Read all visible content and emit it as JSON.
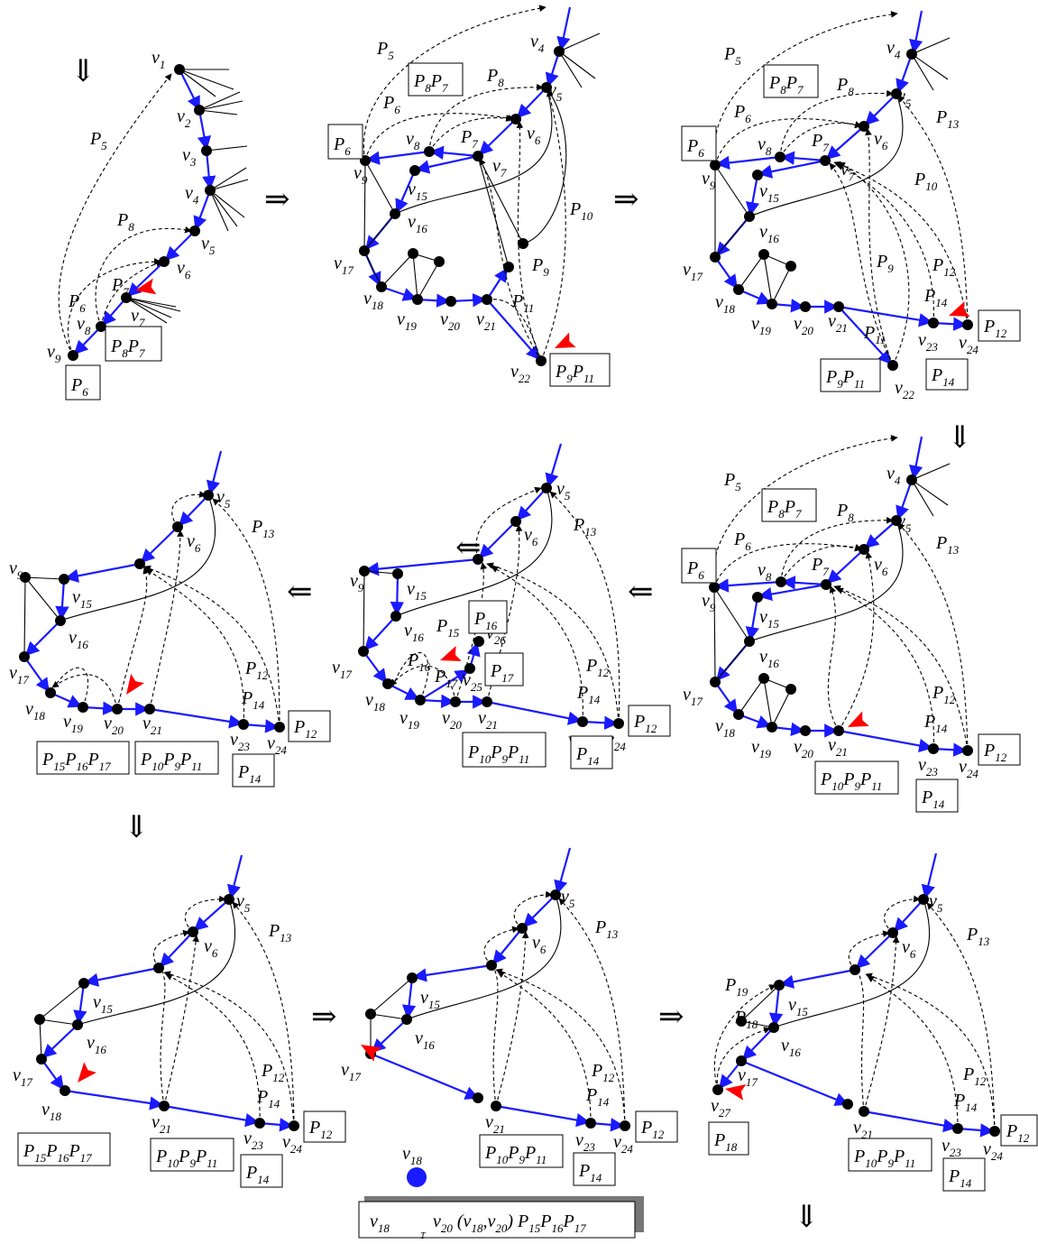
{
  "panels": [
    {
      "id": 1,
      "vertices": [
        "v1",
        "v2",
        "v3",
        "v4",
        "v5",
        "v6",
        "P7",
        "v7",
        "v8",
        "v9"
      ],
      "path_labels": [
        "P5",
        "P8",
        "P6"
      ],
      "boxes": [
        [
          "P",
          "8",
          "P",
          "7"
        ],
        [
          "P",
          "6"
        ]
      ]
    },
    {
      "id": 2,
      "vertices": [
        "v4",
        "v5",
        "v6",
        "v7",
        "v8",
        "v9",
        "v15",
        "v16",
        "v17",
        "v18",
        "v19",
        "v20",
        "v21",
        "v22"
      ],
      "path_labels": [
        "P5",
        "P8",
        "P6",
        "P7",
        "P10",
        "P9",
        "P11"
      ],
      "boxes": [
        [
          "P",
          "8",
          "P",
          "7"
        ],
        [
          "P",
          "6"
        ],
        [
          "P",
          "9",
          "P",
          "11"
        ]
      ]
    },
    {
      "id": 3,
      "vertices": [
        "v4",
        "v5",
        "v6",
        "v7",
        "v8",
        "v9",
        "v15",
        "v16",
        "v17",
        "v18",
        "v19",
        "v20",
        "v21",
        "v22",
        "v23",
        "v24"
      ],
      "path_labels": [
        "P5",
        "P8",
        "P6",
        "P7",
        "P13",
        "P10",
        "P9",
        "P12",
        "P14",
        "P11"
      ],
      "boxes": [
        [
          "P",
          "8",
          "P",
          "7"
        ],
        [
          "P",
          "6"
        ],
        [
          "P",
          "9",
          "P",
          "11"
        ],
        [
          "P",
          "14"
        ],
        [
          "P",
          "12"
        ]
      ]
    },
    {
      "id": 4,
      "vertices": [
        "v4",
        "v5",
        "v6",
        "v8",
        "v9",
        "v15",
        "v16",
        "v17",
        "v18",
        "v19",
        "v20",
        "v21",
        "v23",
        "v24"
      ],
      "path_labels": [
        "P5",
        "P8",
        "P6",
        "P7",
        "P13",
        "P12",
        "P14"
      ],
      "boxes": [
        [
          "P",
          "8",
          "P",
          "7"
        ],
        [
          "P",
          "6"
        ],
        [
          "P",
          "10",
          "P",
          "9",
          "P",
          "11"
        ],
        [
          "P",
          "14"
        ],
        [
          "P",
          "12"
        ]
      ]
    },
    {
      "id": 5,
      "vertices": [
        "v5",
        "v6",
        "v9",
        "v15",
        "v16",
        "v17",
        "v18",
        "v19",
        "v20",
        "v21",
        "v23",
        "v24",
        "v25",
        "v26"
      ],
      "path_labels": [
        "P13",
        "P15",
        "P16",
        "P17",
        "P12",
        "P14"
      ],
      "boxes": [
        [
          "P",
          "16"
        ],
        [
          "P",
          "17"
        ],
        [
          "P",
          "10",
          "P",
          "9",
          "P",
          "11"
        ],
        [
          "P",
          "14"
        ],
        [
          "P",
          "12"
        ]
      ]
    },
    {
      "id": 6,
      "vertices": [
        "v5",
        "v6",
        "v9",
        "v15",
        "v16",
        "v17",
        "v18",
        "v19",
        "v20",
        "v21",
        "v23",
        "v24"
      ],
      "path_labels": [
        "P13",
        "P12",
        "P14"
      ],
      "boxes": [
        [
          "P",
          "15",
          "P",
          "16",
          "P",
          "17"
        ],
        [
          "P",
          "10",
          "P",
          "9",
          "P",
          "11"
        ],
        [
          "P",
          "14"
        ],
        [
          "P",
          "12"
        ]
      ]
    },
    {
      "id": 7,
      "vertices": [
        "v5",
        "v6",
        "v15",
        "v16",
        "v17",
        "v18",
        "v21",
        "v23",
        "v24"
      ],
      "path_labels": [
        "P13",
        "P12",
        "P14"
      ],
      "boxes": [
        [
          "P",
          "15",
          "P",
          "16",
          "P",
          "17"
        ],
        [
          "P",
          "10",
          "P",
          "9",
          "P",
          "11"
        ],
        [
          "P",
          "14"
        ],
        [
          "P",
          "12"
        ]
      ]
    },
    {
      "id": 8,
      "vertices": [
        "v5",
        "v6",
        "v15",
        "v16",
        "v17",
        "v21",
        "v23",
        "v24",
        "v18"
      ],
      "path_labels": [
        "P13",
        "P12",
        "P14"
      ],
      "boxes": [
        [
          "P",
          "10",
          "P",
          "9",
          "P",
          "11"
        ],
        [
          "P",
          "14"
        ],
        [
          "P",
          "12"
        ]
      ],
      "shadow_box_text": [
        "v",
        "18",
        "T",
        "v",
        "20",
        "(v",
        "18",
        ",v",
        "20",
        ")",
        "P",
        "15",
        "P",
        "16",
        "P",
        "17"
      ]
    },
    {
      "id": 9,
      "vertices": [
        "v5",
        "v6",
        "v15",
        "v16",
        "v17",
        "v21",
        "v23",
        "v24",
        "v27"
      ],
      "path_labels": [
        "P13",
        "P19",
        "P18",
        "P12",
        "P14"
      ],
      "boxes": [
        [
          "P",
          "18"
        ],
        [
          "P",
          "10",
          "P",
          "9",
          "P",
          "11"
        ],
        [
          "P",
          "14"
        ],
        [
          "P",
          "12"
        ]
      ]
    }
  ],
  "transition_arrows": [
    "⇓",
    "⇒",
    "⇒",
    "⇓",
    "⇐",
    "⇐",
    "⇓",
    "⇒",
    "⇒",
    "⇓",
    "⇐"
  ],
  "colors": {
    "tree_edge": "#1a1aff",
    "vertex": "#000000",
    "highlight_vertex": "#1a1aff",
    "pointer": "#ff0000",
    "path_dashed": "#000000"
  }
}
